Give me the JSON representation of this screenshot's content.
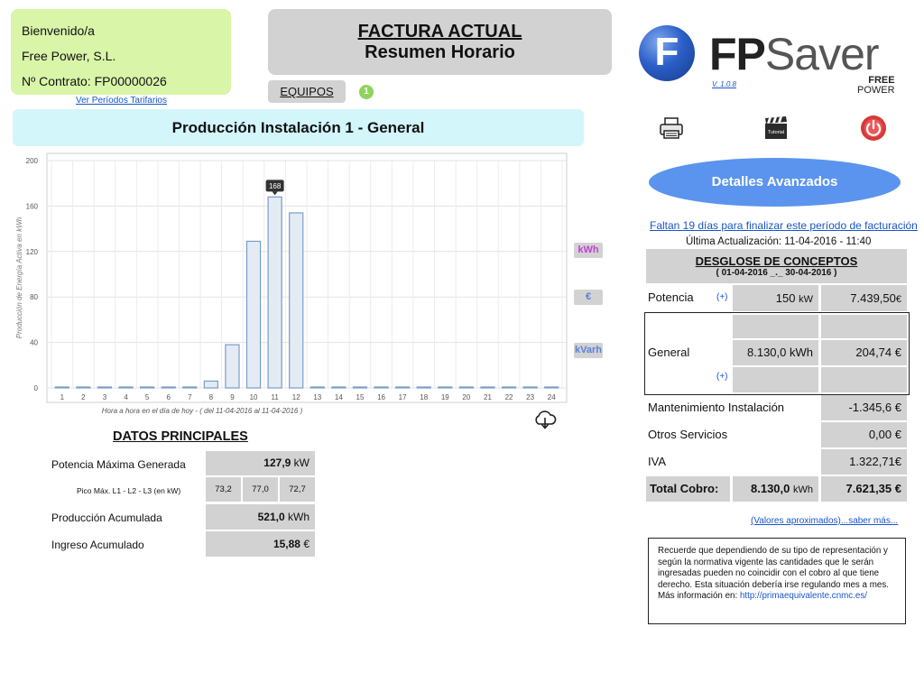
{
  "welcome": {
    "greeting": "Bienvenido/a",
    "company": "Free Power, S.L.",
    "contract": "Nº Contrato: FP00000026"
  },
  "links": {
    "tariff_periods": "Ver Períodos Tarifarios",
    "approx_values": "(Valores aproximados)...saber más..."
  },
  "header": {
    "title": "FACTURA ACTUAL",
    "subtitle": "Resumen Horario"
  },
  "equipos": {
    "label": "EQUIPOS",
    "count": "1"
  },
  "production_title": "Producción Instalación 1 - General",
  "logo": {
    "letter": "F",
    "brand_bold": "FP",
    "brand_light": "Saver",
    "version": "V. 1.0.8",
    "free": "FREE",
    "power": "POWER"
  },
  "icons": {
    "print": "printer-icon",
    "tutorial": "tutorial-clapperboard-icon",
    "power": "power-off-icon",
    "download": "cloud-download-icon",
    "tutorial_text": "Tutorial"
  },
  "detalles_button": "Detalles Avanzados",
  "billing": {
    "days_left": "Faltan 19 días para finalizar este período de facturación",
    "last_update": "Última Actualización: 11-04-2016 - 11:40",
    "desglose_title": "DESGLOSE DE CONCEPTOS",
    "desglose_period": "( 01-04-2016 _._ 30-04-2016 )",
    "plus": "(+)",
    "rows": {
      "potencia": {
        "label": "Potencia",
        "qty": "150",
        "unit": "kW",
        "amount": "7.439,50",
        "currency": "€"
      },
      "general": {
        "label": "General",
        "qty": "8.130,0",
        "unit": "kWh",
        "amount": "204,74",
        "currency": "€"
      },
      "mantenimiento": {
        "label": "Mantenimiento Instalación",
        "amount": "-1.345,6",
        "currency": "€"
      },
      "otros": {
        "label": "Otros Servicios",
        "amount": "0,00",
        "currency": "€"
      },
      "iva": {
        "label": "IVA",
        "amount": "1.322,71",
        "currency": "€"
      },
      "total": {
        "label": "Total Cobro:",
        "qty": "8.130,0",
        "unit": "kWh",
        "amount": "7.621,35",
        "currency": "€"
      }
    }
  },
  "datos": {
    "title": "DATOS PRINCIPALES",
    "potencia_max": {
      "label": "Potencia Máxima Generada",
      "value": "127,9",
      "unit": "kW"
    },
    "pico": {
      "label": "Pico Máx. L1 - L2 - L3 (en kW)",
      "l1": "73,2",
      "l2": "77,0",
      "l3": "72,7"
    },
    "produccion": {
      "label": "Producción Acumulada",
      "value": "521,0",
      "unit": "kWh"
    },
    "ingreso": {
      "label": "Ingreso Acumulado",
      "value": "15,88",
      "unit": "€"
    }
  },
  "legend_buttons": {
    "kwh": "kWh",
    "eur": "€",
    "kvarh": "kVarh"
  },
  "note": {
    "text": "Recuerde que dependiendo de su tipo de representación y según la normativa vigente las cantidades que le serán ingresadas pueden no coincidir con el cobro al que tiene derecho. Esta situación debería irse regulando mes a mes.",
    "more_label": "Más información en:",
    "url": "http://primaequivalente.cnmc.es/"
  },
  "colors": {
    "welcome_bg": "#d8f5a8",
    "title_bar_bg": "#d3f6fb",
    "gray_cell": "#d2d2d2",
    "accent_blue": "#5b94ee",
    "kwh_text": "#c23fd9",
    "kvarh_text": "#5b7fd6"
  },
  "chart_data": {
    "type": "bar",
    "categories": [
      "1",
      "2",
      "3",
      "4",
      "5",
      "6",
      "7",
      "8",
      "9",
      "10",
      "11",
      "12",
      "13",
      "14",
      "15",
      "16",
      "17",
      "18",
      "19",
      "20",
      "21",
      "22",
      "23",
      "24"
    ],
    "values": [
      0,
      0,
      0,
      0,
      0,
      0,
      0,
      6,
      38,
      129,
      168,
      154,
      0,
      0,
      0,
      0,
      0,
      0,
      0,
      0,
      0,
      0,
      0,
      0
    ],
    "ylim": [
      0,
      200
    ],
    "yticks": [
      0,
      40,
      80,
      120,
      160,
      200
    ],
    "ylabel": "Producción de Energía Activa en kWh",
    "xlabel": "Hora a hora en el día de hoy - ( del 11-04-2016 al 11-04-2016 )",
    "tooltip": {
      "category": "11",
      "label": "168"
    },
    "grid": true
  }
}
